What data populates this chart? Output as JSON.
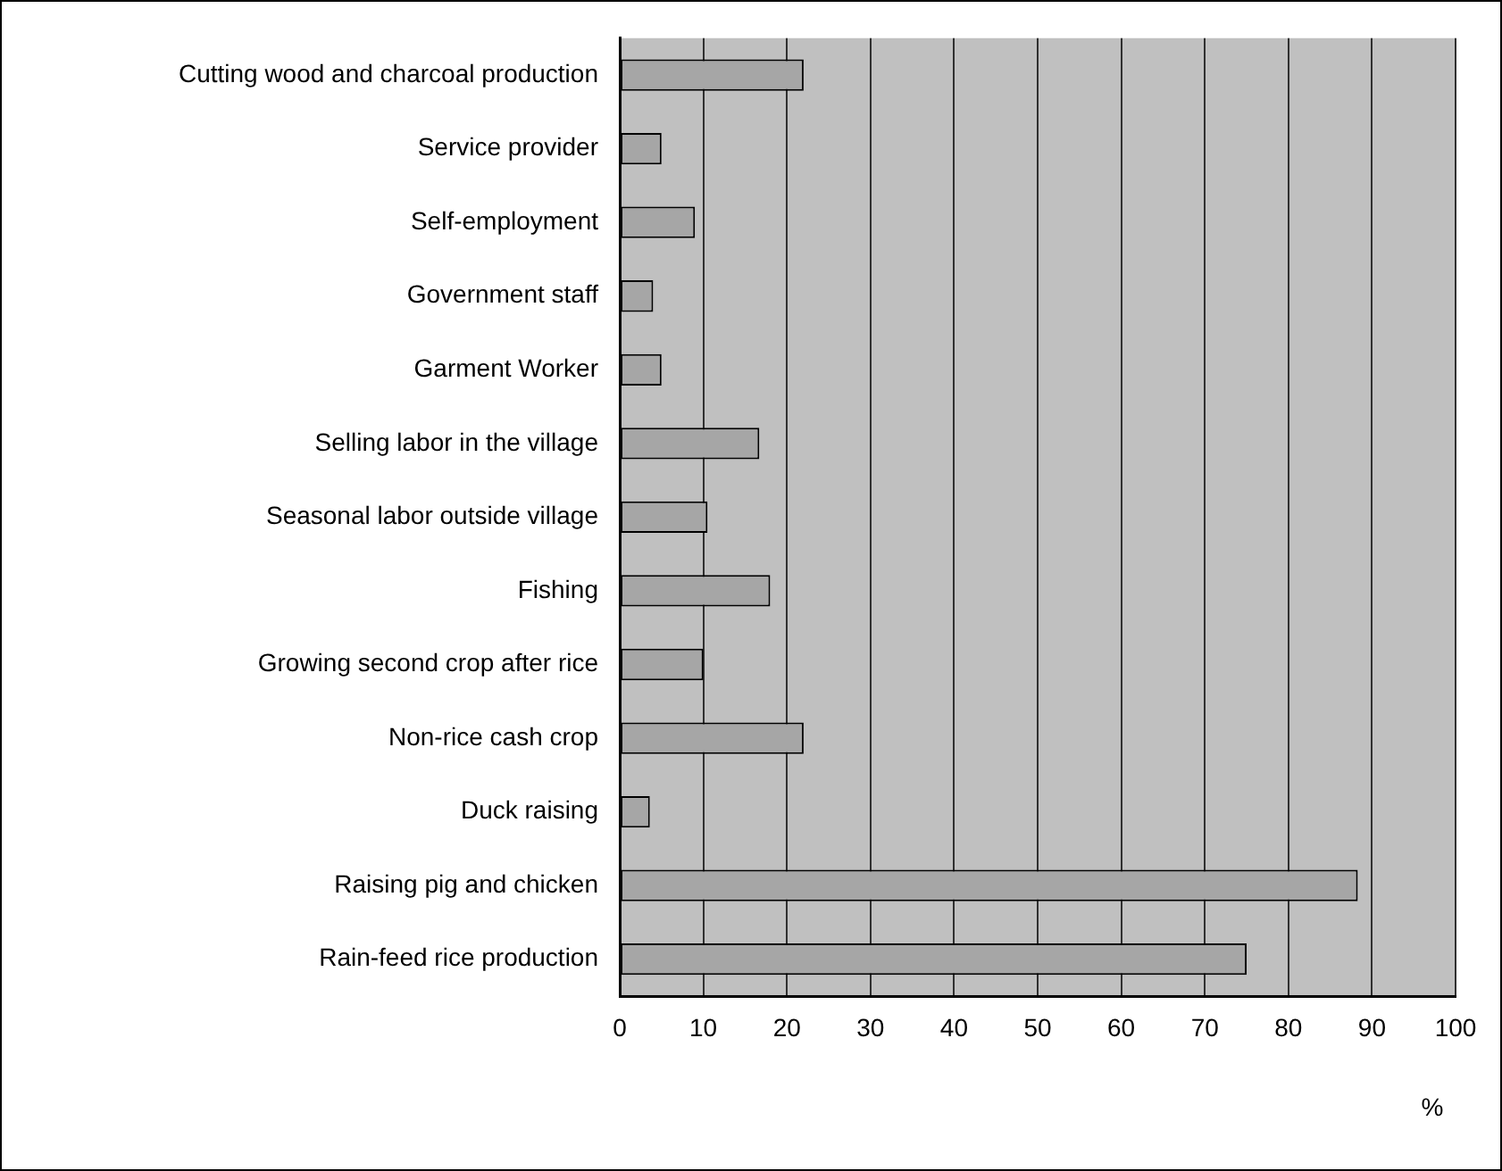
{
  "chart_data": {
    "type": "bar",
    "orientation": "horizontal",
    "xlabel": "%",
    "categories": [
      "Cutting wood and charcoal production",
      "Service provider",
      "Self-employment",
      "Government staff",
      "Garment Worker",
      "Selling labor in the village",
      "Seasonal labor outside village",
      "Fishing",
      "Growing second crop after rice",
      "Non-rice cash crop",
      "Duck raising",
      "Raising pig and chicken",
      "Rain-feed rice production"
    ],
    "values": [
      22,
      5,
      9,
      4,
      5,
      16.7,
      10.5,
      18,
      10,
      22,
      3.6,
      88.3,
      75
    ],
    "color": "#a6a6a6",
    "xlim": [
      0,
      100
    ],
    "xticks": [
      0,
      10,
      20,
      30,
      40,
      50,
      60,
      70,
      80,
      90,
      100
    ],
    "grid": "x",
    "legend": false
  }
}
